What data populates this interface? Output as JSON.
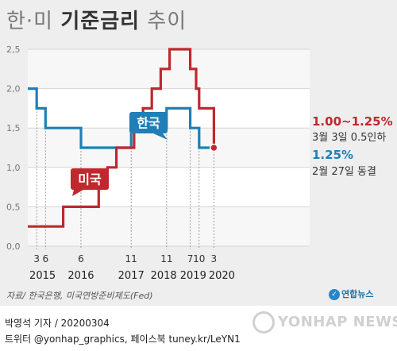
{
  "title": {
    "part1": "한·미",
    "part2": "기준금리",
    "part3": "추이"
  },
  "source": "자료/ 한국은행, 미국연방준비제도(Fed)",
  "logo": "연합뉴스",
  "footer": {
    "byline": "박영석 기자 /  20200304",
    "social": "트위터 @yonhap_graphics, 페이스북 tuney.kr/LeYN1"
  },
  "watermark": "YONHAP NEWS",
  "chart_data": {
    "type": "line",
    "ylim": [
      0,
      2.5
    ],
    "yticks": [
      "0,0",
      "0,5",
      "1,0",
      "1,5",
      "2,0",
      "2,5"
    ],
    "x_month_labels": [
      "3",
      "6",
      "6",
      "11",
      "11",
      "7",
      "10",
      "3"
    ],
    "x_year_labels": [
      "2015",
      "2016",
      "2017",
      "2018",
      "2019",
      "2020"
    ],
    "series": [
      {
        "name": "한국",
        "color": "#1f7fb6",
        "points": [
          [
            "2014-12",
            2.0
          ],
          [
            "2015-03",
            2.0
          ],
          [
            "2015-03",
            1.75
          ],
          [
            "2015-06",
            1.75
          ],
          [
            "2015-06",
            1.5
          ],
          [
            "2016-06",
            1.5
          ],
          [
            "2016-06",
            1.25
          ],
          [
            "2017-11",
            1.25
          ],
          [
            "2017-11",
            1.5
          ],
          [
            "2018-11",
            1.5
          ],
          [
            "2018-11",
            1.75
          ],
          [
            "2019-07",
            1.75
          ],
          [
            "2019-07",
            1.5
          ],
          [
            "2019-10",
            1.5
          ],
          [
            "2019-10",
            1.25
          ],
          [
            "2020-03",
            1.25
          ]
        ]
      },
      {
        "name": "미국",
        "color": "#c0282d",
        "points": [
          [
            "2014-12",
            0.25
          ],
          [
            "2015-12",
            0.25
          ],
          [
            "2015-12",
            0.5
          ],
          [
            "2016-12",
            0.5
          ],
          [
            "2016-12",
            0.75
          ],
          [
            "2017-03",
            0.75
          ],
          [
            "2017-03",
            1.0
          ],
          [
            "2017-06",
            1.0
          ],
          [
            "2017-06",
            1.25
          ],
          [
            "2017-12",
            1.25
          ],
          [
            "2017-12",
            1.5
          ],
          [
            "2018-03",
            1.5
          ],
          [
            "2018-03",
            1.75
          ],
          [
            "2018-06",
            1.75
          ],
          [
            "2018-06",
            2.0
          ],
          [
            "2018-09",
            2.0
          ],
          [
            "2018-09",
            2.25
          ],
          [
            "2018-12",
            2.25
          ],
          [
            "2018-12",
            2.5
          ],
          [
            "2019-07",
            2.5
          ],
          [
            "2019-07",
            2.25
          ],
          [
            "2019-09",
            2.25
          ],
          [
            "2019-09",
            2.0
          ],
          [
            "2019-10",
            2.0
          ],
          [
            "2019-10",
            1.75
          ],
          [
            "2020-03",
            1.75
          ],
          [
            "2020-03",
            1.25
          ]
        ]
      }
    ],
    "series_labels": {
      "korea": "한국",
      "us": "미국"
    },
    "annotations": {
      "us_value": "1.00~1.25%",
      "us_note": "3월 3일 0.5인하",
      "kr_value": "1.25%",
      "kr_note": "2월 27일 동결"
    }
  }
}
